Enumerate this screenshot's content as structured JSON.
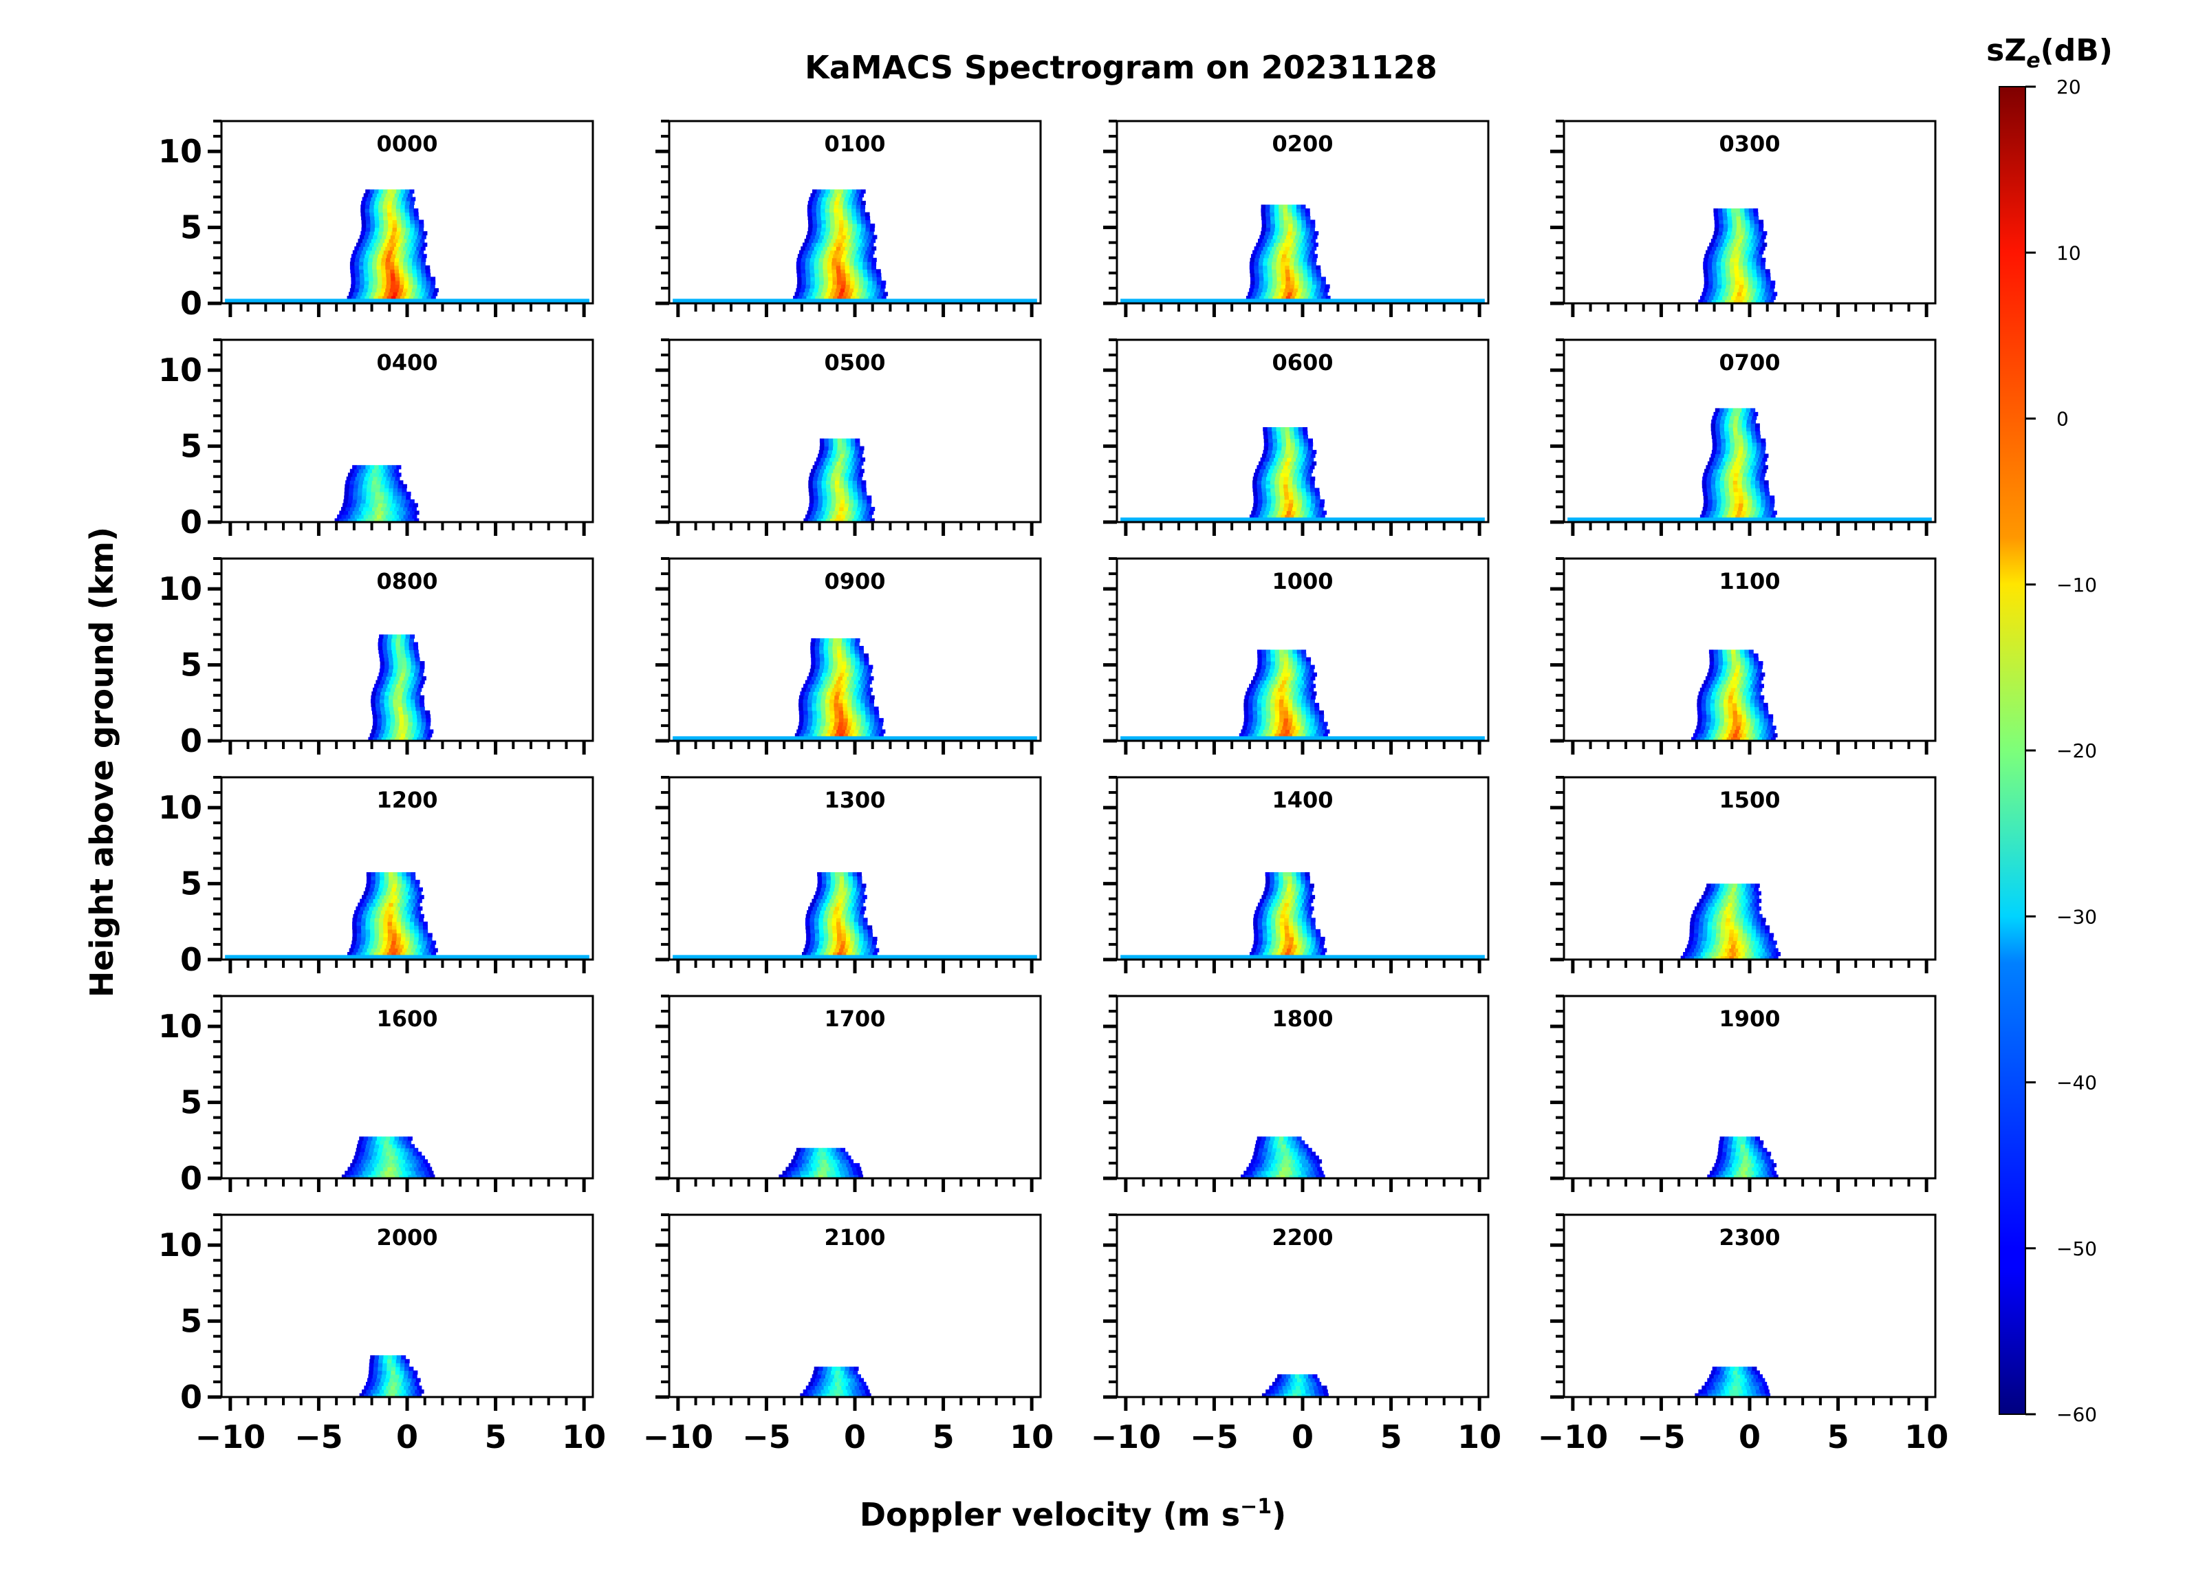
{
  "chart_data": {
    "type": "heatmap",
    "title": "KaMACS Spectrogram on 20231128",
    "xlabel": "Doppler velocity (m s",
    "xlabel_sup": "−1",
    "xlabel_close": ")",
    "ylabel": "Height above ground (km)",
    "xlim": [
      -10.5,
      10.5
    ],
    "ylim": [
      0,
      12
    ],
    "xticks": [
      -10,
      -5,
      0,
      5,
      10
    ],
    "xtick_labels": [
      "−10",
      "−5",
      "0",
      "5",
      "10"
    ],
    "yticks": [
      0,
      5,
      10
    ],
    "ytick_labels": [
      "0",
      "5",
      "10"
    ],
    "colorbar": {
      "label_prefix": "sZ",
      "label_sub": "e",
      "label_suffix": "(dB)",
      "min": -60,
      "max": 20,
      "ticks": [
        20,
        10,
        0,
        -10,
        -20,
        -30,
        -40,
        -50,
        -60
      ],
      "tick_labels": [
        "20",
        "10",
        "0",
        "−10",
        "−20",
        "−30",
        "−40",
        "−50",
        "−60"
      ],
      "colormap": "jet"
    },
    "panels": [
      {
        "time": "0000",
        "top": 7.5,
        "center": -1.0,
        "spread": 2.2,
        "floor": true,
        "bright": 0.95
      },
      {
        "time": "0100",
        "top": 7.5,
        "center": -1.0,
        "spread": 2.3,
        "floor": true,
        "bright": 0.9
      },
      {
        "time": "0200",
        "top": 6.3,
        "center": -1.0,
        "spread": 2.0,
        "floor": true,
        "bright": 0.8
      },
      {
        "time": "0300",
        "top": 6.2,
        "center": -0.8,
        "spread": 1.8,
        "floor": false,
        "bright": 0.6
      },
      {
        "time": "0400",
        "top": 3.7,
        "center": -1.8,
        "spread": 2.0,
        "floor": false,
        "bright": 0.3
      },
      {
        "time": "0500",
        "top": 5.5,
        "center": -1.0,
        "spread": 1.6,
        "floor": false,
        "bright": 0.55
      },
      {
        "time": "0600",
        "top": 6.2,
        "center": -1.0,
        "spread": 1.8,
        "floor": true,
        "bright": 0.7
      },
      {
        "time": "0700",
        "top": 7.3,
        "center": -0.8,
        "spread": 1.8,
        "floor": true,
        "bright": 0.65
      },
      {
        "time": "0800",
        "top": 7.0,
        "center": -0.5,
        "spread": 1.4,
        "floor": false,
        "bright": 0.45
      },
      {
        "time": "0900",
        "top": 6.7,
        "center": -1.0,
        "spread": 2.2,
        "floor": true,
        "bright": 0.9
      },
      {
        "time": "1000",
        "top": 5.9,
        "center": -1.2,
        "spread": 2.2,
        "floor": true,
        "bright": 0.85
      },
      {
        "time": "1100",
        "top": 6.0,
        "center": -1.0,
        "spread": 2.0,
        "floor": false,
        "bright": 0.8
      },
      {
        "time": "1200",
        "top": 5.6,
        "center": -1.0,
        "spread": 2.2,
        "floor": true,
        "bright": 0.85
      },
      {
        "time": "1300",
        "top": 5.7,
        "center": -1.0,
        "spread": 1.8,
        "floor": true,
        "bright": 0.8
      },
      {
        "time": "1400",
        "top": 5.6,
        "center": -1.0,
        "spread": 1.8,
        "floor": true,
        "bright": 0.8
      },
      {
        "time": "1500",
        "top": 4.8,
        "center": -1.2,
        "spread": 2.4,
        "floor": false,
        "bright": 0.7
      },
      {
        "time": "1600",
        "top": 2.7,
        "center": -1.2,
        "spread": 2.2,
        "floor": false,
        "bright": 0.3
      },
      {
        "time": "1700",
        "top": 2.0,
        "center": -2.0,
        "spread": 2.0,
        "floor": false,
        "bright": 0.25
      },
      {
        "time": "1800",
        "top": 2.6,
        "center": -1.2,
        "spread": 2.0,
        "floor": false,
        "bright": 0.3
      },
      {
        "time": "1900",
        "top": 2.6,
        "center": -0.5,
        "spread": 1.6,
        "floor": false,
        "bright": 0.3
      },
      {
        "time": "2000",
        "top": 2.6,
        "center": -1.0,
        "spread": 1.4,
        "floor": false,
        "bright": 0.25
      },
      {
        "time": "2100",
        "top": 2.0,
        "center": -1.2,
        "spread": 1.6,
        "floor": false,
        "bright": 0.15
      },
      {
        "time": "2200",
        "top": 1.4,
        "center": -0.5,
        "spread": 1.5,
        "floor": false,
        "bright": 0.1
      },
      {
        "time": "2300",
        "top": 1.8,
        "center": -1.0,
        "spread": 1.8,
        "floor": false,
        "bright": 0.15
      }
    ]
  }
}
